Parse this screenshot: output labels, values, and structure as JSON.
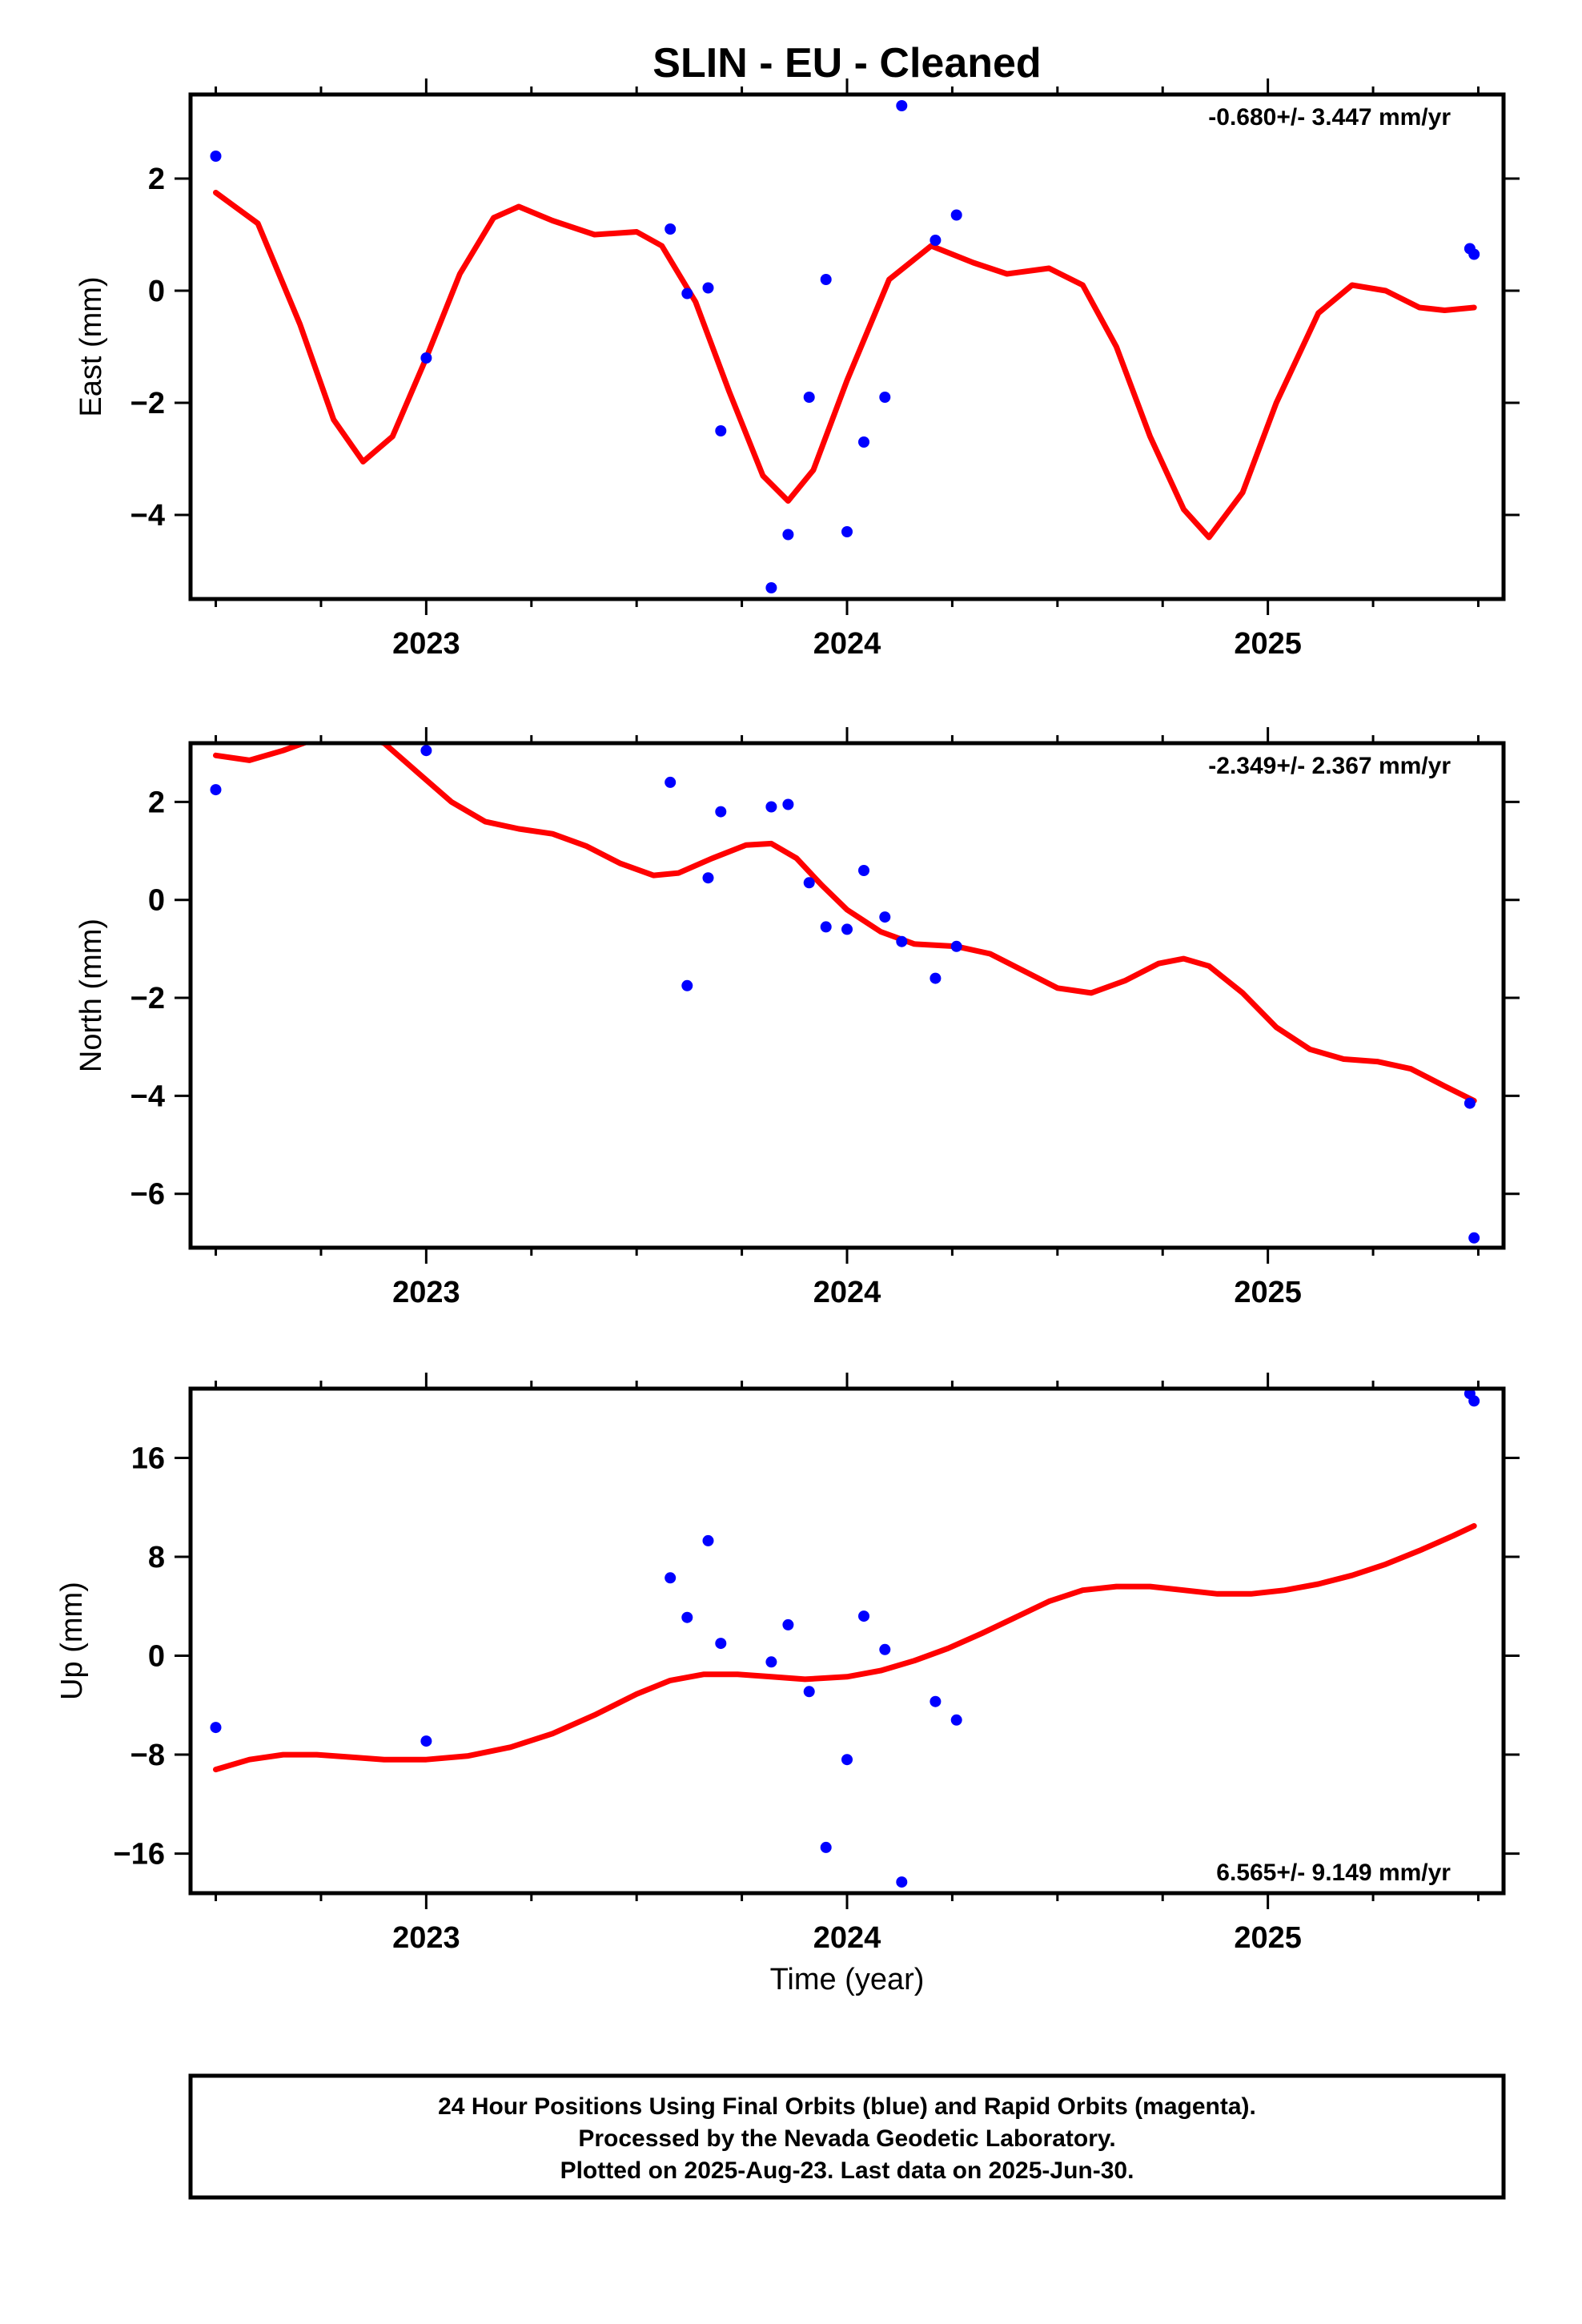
{
  "title": "SLIN  - EU - Cleaned",
  "xlabel": "Time (year)",
  "footer": {
    "line1": "24 Hour Positions Using Final Orbits (blue) and Rapid Orbits (magenta).",
    "line2": "Processed by the Nevada Geodetic Laboratory.",
    "line3": "Plotted on 2025-Aug-23. Last data on 2025-Jun-30."
  },
  "colors": {
    "points": "#0000ff",
    "fit": "#ff0000",
    "frame": "#000000"
  },
  "chart_data": [
    {
      "type": "scatter",
      "ylabel": "East (mm)",
      "rate_label": "-0.680+/- 3.447 mm/yr",
      "rate_position": "top-right",
      "xlim": [
        2022.44,
        2025.56
      ],
      "ylim": [
        -5.5,
        3.5
      ],
      "x_ticks": [
        2023,
        2024,
        2025
      ],
      "x_tick_labels": [
        "2023",
        "2024",
        "2025"
      ],
      "y_ticks": [
        -4,
        -2,
        0,
        2
      ],
      "y_tick_labels": [
        "−4",
        "−2",
        "0",
        "2"
      ],
      "points": [
        [
          2022.5,
          2.4
        ],
        [
          2023.0,
          -1.2
        ],
        [
          2023.58,
          1.1
        ],
        [
          2023.62,
          -0.05
        ],
        [
          2023.67,
          0.05
        ],
        [
          2023.7,
          -2.5
        ],
        [
          2023.82,
          -5.3
        ],
        [
          2023.86,
          -4.35
        ],
        [
          2023.91,
          -1.9
        ],
        [
          2023.95,
          0.2
        ],
        [
          2024.0,
          -4.3
        ],
        [
          2024.04,
          -2.7
        ],
        [
          2024.09,
          -1.9
        ],
        [
          2024.13,
          3.3
        ],
        [
          2024.21,
          0.9
        ],
        [
          2024.26,
          1.35
        ],
        [
          2025.48,
          0.75
        ],
        [
          2025.49,
          0.65
        ]
      ],
      "fit_curve": [
        [
          2022.5,
          1.75
        ],
        [
          2022.6,
          1.2
        ],
        [
          2022.7,
          -0.6
        ],
        [
          2022.78,
          -2.3
        ],
        [
          2022.85,
          -3.05
        ],
        [
          2022.92,
          -2.6
        ],
        [
          2023.0,
          -1.2
        ],
        [
          2023.08,
          0.3
        ],
        [
          2023.16,
          1.3
        ],
        [
          2023.22,
          1.5
        ],
        [
          2023.3,
          1.25
        ],
        [
          2023.4,
          1.0
        ],
        [
          2023.5,
          1.05
        ],
        [
          2023.56,
          0.8
        ],
        [
          2023.64,
          -0.2
        ],
        [
          2023.72,
          -1.8
        ],
        [
          2023.8,
          -3.3
        ],
        [
          2023.86,
          -3.75
        ],
        [
          2023.92,
          -3.2
        ],
        [
          2024.0,
          -1.6
        ],
        [
          2024.1,
          0.2
        ],
        [
          2024.2,
          0.8
        ],
        [
          2024.3,
          0.5
        ],
        [
          2024.38,
          0.3
        ],
        [
          2024.48,
          0.4
        ],
        [
          2024.56,
          0.1
        ],
        [
          2024.64,
          -1.0
        ],
        [
          2024.72,
          -2.6
        ],
        [
          2024.8,
          -3.9
        ],
        [
          2024.86,
          -4.4
        ],
        [
          2024.94,
          -3.6
        ],
        [
          2025.02,
          -2.0
        ],
        [
          2025.12,
          -0.4
        ],
        [
          2025.2,
          0.1
        ],
        [
          2025.28,
          0.0
        ],
        [
          2025.36,
          -0.3
        ],
        [
          2025.42,
          -0.35
        ],
        [
          2025.49,
          -0.3
        ]
      ]
    },
    {
      "type": "scatter",
      "ylabel": "North (mm)",
      "rate_label": "-2.349+/- 2.367 mm/yr",
      "rate_position": "top-right",
      "xlim": [
        2022.44,
        2025.56
      ],
      "ylim": [
        -7.1,
        3.2
      ],
      "x_ticks": [
        2023,
        2024,
        2025
      ],
      "x_tick_labels": [
        "2023",
        "2024",
        "2025"
      ],
      "y_ticks": [
        -6,
        -4,
        -2,
        0,
        2
      ],
      "y_tick_labels": [
        "−6",
        "−4",
        "−2",
        "0",
        "2"
      ],
      "points": [
        [
          2022.5,
          2.25
        ],
        [
          2023.0,
          3.05
        ],
        [
          2023.58,
          2.4
        ],
        [
          2023.62,
          -1.75
        ],
        [
          2023.67,
          0.45
        ],
        [
          2023.7,
          1.8
        ],
        [
          2023.82,
          1.9
        ],
        [
          2023.86,
          1.95
        ],
        [
          2023.91,
          0.35
        ],
        [
          2023.95,
          -0.55
        ],
        [
          2024.0,
          -0.6
        ],
        [
          2024.04,
          0.6
        ],
        [
          2024.09,
          -0.35
        ],
        [
          2024.13,
          -0.85
        ],
        [
          2024.21,
          -1.6
        ],
        [
          2024.26,
          -0.95
        ],
        [
          2025.48,
          -4.15
        ],
        [
          2025.49,
          -6.9
        ]
      ],
      "fit_curve": [
        [
          2022.5,
          2.95
        ],
        [
          2022.58,
          2.85
        ],
        [
          2022.66,
          3.05
        ],
        [
          2022.74,
          3.3
        ],
        [
          2022.82,
          3.4
        ],
        [
          2022.9,
          3.2
        ],
        [
          2022.98,
          2.6
        ],
        [
          2023.06,
          2.0
        ],
        [
          2023.14,
          1.6
        ],
        [
          2023.22,
          1.45
        ],
        [
          2023.3,
          1.35
        ],
        [
          2023.38,
          1.1
        ],
        [
          2023.46,
          0.75
        ],
        [
          2023.54,
          0.5
        ],
        [
          2023.6,
          0.55
        ],
        [
          2023.68,
          0.85
        ],
        [
          2023.76,
          1.12
        ],
        [
          2023.82,
          1.15
        ],
        [
          2023.88,
          0.85
        ],
        [
          2023.94,
          0.3
        ],
        [
          2024.0,
          -0.2
        ],
        [
          2024.08,
          -0.65
        ],
        [
          2024.16,
          -0.9
        ],
        [
          2024.26,
          -0.95
        ],
        [
          2024.34,
          -1.1
        ],
        [
          2024.42,
          -1.45
        ],
        [
          2024.5,
          -1.8
        ],
        [
          2024.58,
          -1.9
        ],
        [
          2024.66,
          -1.65
        ],
        [
          2024.74,
          -1.3
        ],
        [
          2024.8,
          -1.2
        ],
        [
          2024.86,
          -1.35
        ],
        [
          2024.94,
          -1.9
        ],
        [
          2025.02,
          -2.6
        ],
        [
          2025.1,
          -3.05
        ],
        [
          2025.18,
          -3.25
        ],
        [
          2025.26,
          -3.3
        ],
        [
          2025.34,
          -3.45
        ],
        [
          2025.42,
          -3.8
        ],
        [
          2025.49,
          -4.1
        ]
      ]
    },
    {
      "type": "scatter",
      "ylabel": "Up (mm)",
      "rate_label": "6.565+/- 9.149 mm/yr",
      "rate_position": "bottom-right",
      "xlim": [
        2022.44,
        2025.56
      ],
      "ylim": [
        -19.2,
        21.6
      ],
      "x_ticks": [
        2023,
        2024,
        2025
      ],
      "x_tick_labels": [
        "2023",
        "2024",
        "2025"
      ],
      "y_ticks": [
        -16,
        -8,
        0,
        8,
        16
      ],
      "y_tick_labels": [
        "−16",
        "−8",
        "0",
        "8",
        "16"
      ],
      "points": [
        [
          2022.5,
          -5.8
        ],
        [
          2023.0,
          -6.9
        ],
        [
          2023.58,
          6.3
        ],
        [
          2023.62,
          3.1
        ],
        [
          2023.67,
          9.3
        ],
        [
          2023.7,
          1.0
        ],
        [
          2023.82,
          -0.5
        ],
        [
          2023.86,
          2.5
        ],
        [
          2023.91,
          -2.9
        ],
        [
          2023.95,
          -15.5
        ],
        [
          2024.0,
          -8.4
        ],
        [
          2024.04,
          3.2
        ],
        [
          2024.09,
          0.5
        ],
        [
          2024.13,
          -18.3
        ],
        [
          2024.21,
          -3.7
        ],
        [
          2024.26,
          -5.2
        ],
        [
          2025.48,
          21.2
        ],
        [
          2025.49,
          20.6
        ]
      ],
      "fit_curve": [
        [
          2022.5,
          -9.2
        ],
        [
          2022.58,
          -8.4
        ],
        [
          2022.66,
          -8.0
        ],
        [
          2022.74,
          -8.0
        ],
        [
          2022.82,
          -8.2
        ],
        [
          2022.9,
          -8.4
        ],
        [
          2023.0,
          -8.4
        ],
        [
          2023.1,
          -8.1
        ],
        [
          2023.2,
          -7.4
        ],
        [
          2023.3,
          -6.3
        ],
        [
          2023.4,
          -4.8
        ],
        [
          2023.5,
          -3.1
        ],
        [
          2023.58,
          -2.0
        ],
        [
          2023.66,
          -1.5
        ],
        [
          2023.74,
          -1.5
        ],
        [
          2023.82,
          -1.7
        ],
        [
          2023.9,
          -1.9
        ],
        [
          2024.0,
          -1.7
        ],
        [
          2024.08,
          -1.2
        ],
        [
          2024.16,
          -0.4
        ],
        [
          2024.24,
          0.6
        ],
        [
          2024.32,
          1.8
        ],
        [
          2024.4,
          3.1
        ],
        [
          2024.48,
          4.4
        ],
        [
          2024.56,
          5.3
        ],
        [
          2024.64,
          5.6
        ],
        [
          2024.72,
          5.6
        ],
        [
          2024.8,
          5.3
        ],
        [
          2024.88,
          5.0
        ],
        [
          2024.96,
          5.0
        ],
        [
          2025.04,
          5.3
        ],
        [
          2025.12,
          5.8
        ],
        [
          2025.2,
          6.5
        ],
        [
          2025.28,
          7.4
        ],
        [
          2025.36,
          8.5
        ],
        [
          2025.44,
          9.7
        ],
        [
          2025.49,
          10.5
        ]
      ]
    }
  ]
}
